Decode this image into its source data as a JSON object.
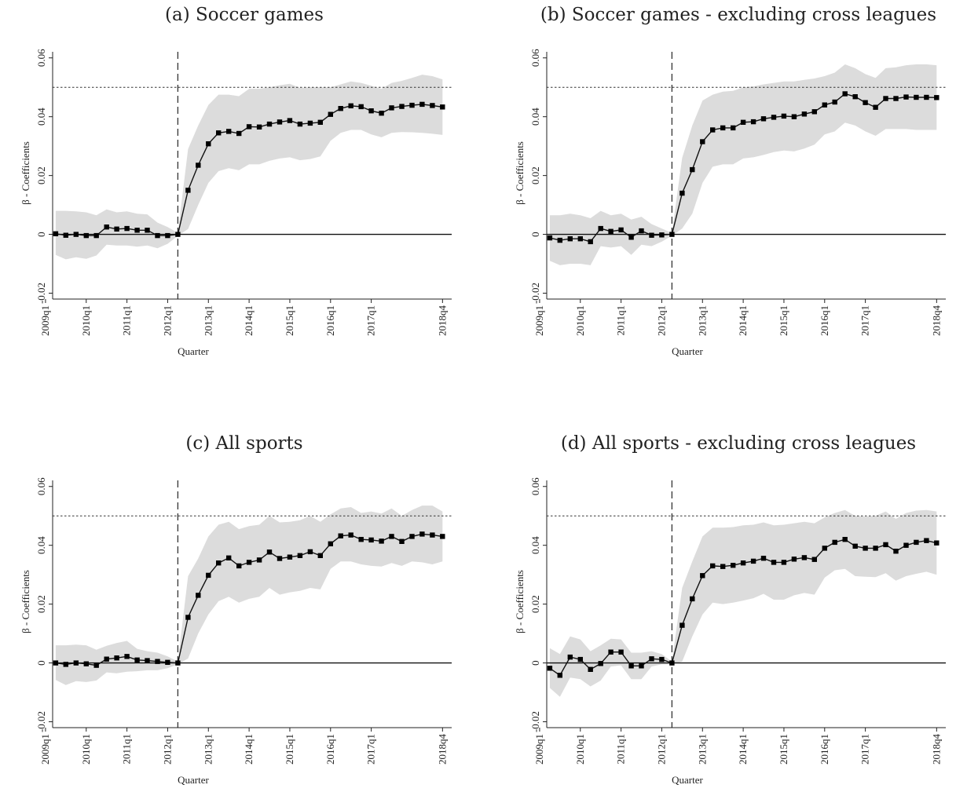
{
  "chart_data": [
    {
      "panel_title": "(a) Soccer games",
      "type": "line",
      "xlabel": "Quarter",
      "ylabel": "β - Coefficients",
      "x_ticks": [
        "2009q1",
        "2010q1",
        "2011q1",
        "2012q1",
        "2013q1",
        "2014q1",
        "2015q1",
        "2016q1",
        "2017q1",
        "2018q4"
      ],
      "y_ticks": [
        "-0.02",
        "0",
        "0.02",
        "0.04",
        "0.06"
      ],
      "ylim": [
        -0.022,
        0.061
      ],
      "reference_lines": {
        "horizontal_dotted": 0.05,
        "horizontal_solid": 0,
        "vertical_dashed": "2012q2"
      },
      "x_start": "2009q2",
      "series": [
        {
          "values": [
            0.0002,
            -0.0003,
            0.0,
            -0.0004,
            -0.0004,
            0.0025,
            0.0018,
            0.002,
            0.0014,
            0.0014,
            -0.0004,
            -0.0004,
            0.0,
            0.015,
            0.0235,
            0.0308,
            0.0345,
            0.035,
            0.0343,
            0.0366,
            0.0365,
            0.0375,
            0.0382,
            0.0387,
            0.0375,
            0.0378,
            0.0381,
            0.0408,
            0.0428,
            0.0437,
            0.0434,
            0.042,
            0.0412,
            0.043,
            0.0435,
            0.0439,
            0.0442,
            0.0438,
            0.0433
          ],
          "ci_upper": [
            0.008,
            0.008,
            0.0078,
            0.0075,
            0.0065,
            0.0085,
            0.0075,
            0.0078,
            0.007,
            0.0068,
            0.004,
            0.0025,
            0.0005,
            0.029,
            0.037,
            0.044,
            0.0475,
            0.0475,
            0.047,
            0.0495,
            0.0495,
            0.05,
            0.0507,
            0.0512,
            0.0498,
            0.05,
            0.05,
            0.05,
            0.051,
            0.052,
            0.0515,
            0.0505,
            0.0495,
            0.0515,
            0.0522,
            0.0532,
            0.0543,
            0.0538,
            0.0527
          ],
          "ci_lower": [
            -0.007,
            -0.0085,
            -0.0078,
            -0.0083,
            -0.0072,
            -0.0035,
            -0.0038,
            -0.0038,
            -0.0042,
            -0.0038,
            -0.0047,
            -0.0032,
            -0.0005,
            0.0018,
            0.01,
            0.0175,
            0.0215,
            0.0225,
            0.0218,
            0.0238,
            0.0238,
            0.025,
            0.0258,
            0.0262,
            0.0252,
            0.0256,
            0.0265,
            0.0318,
            0.0345,
            0.0355,
            0.0355,
            0.034,
            0.033,
            0.0345,
            0.0348,
            0.0347,
            0.0345,
            0.0342,
            0.0338
          ]
        }
      ]
    },
    {
      "panel_title": "(b) Soccer games - excluding cross leagues",
      "type": "line",
      "xlabel": "Quarter",
      "ylabel": "β - Coefficients",
      "x_ticks": [
        "2009q1",
        "2010q1",
        "2011q1",
        "2012q1",
        "2013q1",
        "2014q1",
        "2015q1",
        "2016q1",
        "2017q1",
        "2018q4"
      ],
      "y_ticks": [
        "-0.02",
        "0",
        "0.02",
        "0.04",
        "0.06"
      ],
      "ylim": [
        -0.022,
        0.061
      ],
      "reference_lines": {
        "horizontal_dotted": 0.05,
        "horizontal_solid": 0,
        "vertical_dashed": "2012q2"
      },
      "x_start": "2009q2",
      "series": [
        {
          "values": [
            -0.0012,
            -0.002,
            -0.0015,
            -0.0015,
            -0.0025,
            0.002,
            0.001,
            0.0015,
            -0.001,
            0.0012,
            -0.0003,
            -0.0002,
            0.0,
            0.014,
            0.022,
            0.0315,
            0.0355,
            0.0362,
            0.0362,
            0.0381,
            0.0383,
            0.0393,
            0.0398,
            0.0402,
            0.04,
            0.0409,
            0.0417,
            0.044,
            0.045,
            0.0478,
            0.0468,
            0.0448,
            0.0432,
            0.0462,
            0.0462,
            0.0467,
            0.0466,
            0.0466,
            0.0465
          ],
          "ci_upper": [
            0.0065,
            0.0065,
            0.007,
            0.0065,
            0.0055,
            0.008,
            0.0065,
            0.007,
            0.005,
            0.006,
            0.0035,
            0.002,
            0.0005,
            0.026,
            0.037,
            0.0455,
            0.0475,
            0.0485,
            0.0488,
            0.05,
            0.0503,
            0.051,
            0.0515,
            0.052,
            0.052,
            0.0525,
            0.053,
            0.0538,
            0.055,
            0.0578,
            0.0565,
            0.0545,
            0.0532,
            0.0565,
            0.0568,
            0.0575,
            0.0578,
            0.0578,
            0.0575
          ],
          "ci_lower": [
            -0.009,
            -0.0105,
            -0.01,
            -0.01,
            -0.0105,
            -0.004,
            -0.0045,
            -0.004,
            -0.007,
            -0.0035,
            -0.004,
            -0.0025,
            -0.0005,
            0.002,
            0.007,
            0.0175,
            0.023,
            0.0238,
            0.0238,
            0.0258,
            0.0262,
            0.027,
            0.028,
            0.0285,
            0.0282,
            0.0292,
            0.0305,
            0.034,
            0.035,
            0.038,
            0.037,
            0.035,
            0.0335,
            0.0358,
            0.0358,
            0.0358,
            0.0355,
            0.0355,
            0.0355
          ]
        }
      ]
    },
    {
      "panel_title": "(c) All sports",
      "type": "line",
      "xlabel": "Quarter",
      "ylabel": "β - Coefficients",
      "x_ticks": [
        "2009q1",
        "2010q1",
        "2011q1",
        "2012q1",
        "2013q1",
        "2014q1",
        "2015q1",
        "2016q1",
        "2017q1",
        "2018q4"
      ],
      "y_ticks": [
        "-0.02",
        "0",
        "0.02",
        "0.04",
        "0.06"
      ],
      "ylim": [
        -0.022,
        0.061
      ],
      "reference_lines": {
        "horizontal_dotted": 0.05,
        "horizontal_solid": 0,
        "vertical_dashed": "2012q2"
      },
      "x_start": "2009q2",
      "series": [
        {
          "values": [
            0.0,
            -0.0005,
            0.0,
            -0.0003,
            -0.0008,
            0.0013,
            0.0017,
            0.0022,
            0.001,
            0.0008,
            0.0005,
            0.0002,
            0.0,
            0.0155,
            0.023,
            0.0298,
            0.034,
            0.0357,
            0.033,
            0.0342,
            0.035,
            0.0377,
            0.0355,
            0.036,
            0.0365,
            0.0378,
            0.0365,
            0.0405,
            0.0432,
            0.0435,
            0.042,
            0.0418,
            0.0414,
            0.043,
            0.0413,
            0.043,
            0.0438,
            0.0435,
            0.043
          ],
          "ci_upper": [
            0.006,
            0.006,
            0.0062,
            0.006,
            0.0045,
            0.0058,
            0.0068,
            0.0075,
            0.0048,
            0.004,
            0.0035,
            0.0022,
            0.0005,
            0.0295,
            0.0355,
            0.043,
            0.047,
            0.048,
            0.0455,
            0.0465,
            0.047,
            0.05,
            0.0478,
            0.048,
            0.0485,
            0.05,
            0.048,
            0.0505,
            0.0525,
            0.053,
            0.051,
            0.0515,
            0.0508,
            0.0525,
            0.05,
            0.052,
            0.0535,
            0.0535,
            0.0515
          ],
          "ci_lower": [
            -0.0058,
            -0.0075,
            -0.0062,
            -0.0065,
            -0.006,
            -0.0032,
            -0.0035,
            -0.003,
            -0.0028,
            -0.0025,
            -0.0025,
            -0.0018,
            -0.0005,
            0.0015,
            0.01,
            0.0165,
            0.021,
            0.0225,
            0.0205,
            0.0218,
            0.0225,
            0.0255,
            0.0232,
            0.024,
            0.0245,
            0.0255,
            0.025,
            0.032,
            0.0345,
            0.0345,
            0.0335,
            0.033,
            0.0328,
            0.034,
            0.033,
            0.0345,
            0.0342,
            0.0335,
            0.0345
          ]
        }
      ]
    },
    {
      "panel_title": "(d) All sports - excluding cross leagues",
      "type": "line",
      "xlabel": "Quarter",
      "ylabel": "β - Coefficients",
      "x_ticks": [
        "2009q1",
        "2010q1",
        "2011q1",
        "2012q1",
        "2013q1",
        "2014q1",
        "2015q1",
        "2016q1",
        "2017q1",
        "2018q4"
      ],
      "y_ticks": [
        "-0.02",
        "0",
        "0.02",
        "0.04",
        "0.06"
      ],
      "ylim": [
        -0.022,
        0.061
      ],
      "reference_lines": {
        "horizontal_dotted": 0.05,
        "horizontal_solid": 0,
        "vertical_dashed": "2012q2"
      },
      "x_start": "2009q2",
      "series": [
        {
          "values": [
            -0.0018,
            -0.0042,
            0.002,
            0.0012,
            -0.0022,
            -0.0002,
            0.0037,
            0.0037,
            -0.001,
            -0.001,
            0.0014,
            0.0012,
            0.0,
            0.0128,
            0.0218,
            0.0297,
            0.033,
            0.0328,
            0.0332,
            0.034,
            0.0346,
            0.0356,
            0.0342,
            0.0342,
            0.0353,
            0.0358,
            0.0352,
            0.039,
            0.041,
            0.042,
            0.0397,
            0.039,
            0.039,
            0.0402,
            0.038,
            0.04,
            0.041,
            0.0416,
            0.0408
          ],
          "ci_upper": [
            0.005,
            0.003,
            0.009,
            0.008,
            0.004,
            0.006,
            0.0082,
            0.008,
            0.0035,
            0.0035,
            0.004,
            0.003,
            0.0005,
            0.0255,
            0.0345,
            0.043,
            0.046,
            0.046,
            0.0462,
            0.0468,
            0.047,
            0.0478,
            0.0468,
            0.047,
            0.0475,
            0.048,
            0.0475,
            0.0495,
            0.051,
            0.052,
            0.05,
            0.0497,
            0.05,
            0.0515,
            0.049,
            0.051,
            0.0518,
            0.052,
            0.0515
          ],
          "ci_lower": [
            -0.0085,
            -0.0115,
            -0.005,
            -0.0055,
            -0.008,
            -0.006,
            -0.0012,
            -0.0008,
            -0.0055,
            -0.0055,
            -0.0012,
            -0.0005,
            -0.0005,
            0.0005,
            0.009,
            0.0165,
            0.0205,
            0.02,
            0.0205,
            0.0212,
            0.022,
            0.0235,
            0.0215,
            0.0215,
            0.023,
            0.0238,
            0.0232,
            0.029,
            0.0315,
            0.032,
            0.0295,
            0.0293,
            0.0292,
            0.0305,
            0.028,
            0.0295,
            0.0303,
            0.031,
            0.03
          ]
        }
      ]
    }
  ]
}
